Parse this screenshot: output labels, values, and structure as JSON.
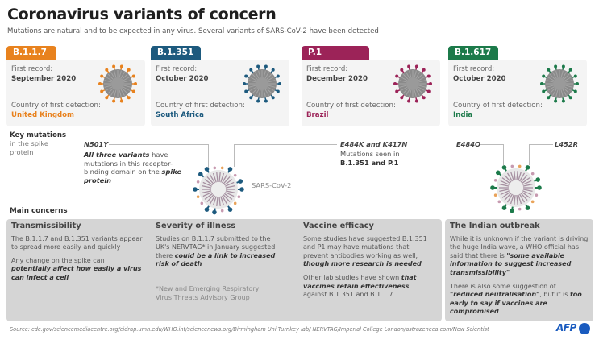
{
  "header": {
    "title": "Coronavirus variants of concern",
    "subtitle": "Mutations are natural and to be expected in any virus. Several variants of SARS-CoV-2 have been detected"
  },
  "variants": [
    {
      "name": "B.1.1.7",
      "first_record_label": "First record:",
      "first_record": "September 2020",
      "country_label": "Country of first detection:",
      "country": "United Kingdom",
      "color": "#e8821e"
    },
    {
      "name": "B.1.351",
      "first_record_label": "First record:",
      "first_record": "October 2020",
      "country_label": "Country of first detection:",
      "country": "South Africa",
      "color": "#1d5a7e"
    },
    {
      "name": "P.1",
      "first_record_label": "First record:",
      "first_record": "December 2020",
      "country_label": "Country of first detection:",
      "country": "Brazil",
      "color": "#9c2358"
    },
    {
      "name": "B.1.617",
      "first_record_label": "First record:",
      "first_record": "October 2020",
      "country_label": "Country of first detection:",
      "country": "India",
      "color": "#1c7a4a"
    }
  ],
  "key_mutations": {
    "title": "Key mutations",
    "subtitle": "in the spike protein",
    "n501y_label": "N501Y",
    "n501y_bold": "All three variants",
    "n501y_text1": " have mutations in this receptor-binding domain on the ",
    "n501y_italic": "spike protein",
    "e484k_label": "E484K and K417N",
    "e484k_text": "Mutations seen in",
    "e484k_bold": "B.1.351 and P.1",
    "virus_label": "SARS-CoV-2",
    "e484q_label": "E484Q",
    "l452r_label": "L452R"
  },
  "main_concerns": {
    "title": "Main concerns",
    "transmissibility": {
      "heading": "Transmissibility",
      "p1": "The B.1.1.7 and B.1.351 variants appear to spread more easily and quickly",
      "p2_plain": "Any change on the spike can ",
      "p2_bold": "potentially affect how easily a virus can infect a cell"
    },
    "severity": {
      "heading": "Severity of illness",
      "p1_plain": "Studies on B.1.1.7 submitted to the UK's NERVTAG* in January suggested there ",
      "p1_bold": "could be a link to increased risk of death",
      "footnote": "*New and Emerging Respiratory Virus Threats Advisory Group"
    },
    "vaccine": {
      "heading": "Vaccine efficacy",
      "p1_plain": "Some studies have suggested B.1.351 and P1 may have mutations that prevent antibodies working as well, ",
      "p1_bold": "though more research is needed",
      "p2_plain": "Other lab studies have shown ",
      "p2_bold": "that vaccines retain effectiveness",
      "p2_end": " against B.1.351 and B.1.1.7"
    },
    "indian": {
      "heading": "The Indian outbreak",
      "p1_plain": "While it is unknown if the variant is driving the huge India wave, a WHO official has said that there is ",
      "p1_bold": "\"some available information to suggest increased transmissibility\"",
      "p2_plain": "There is also some suggestion of ",
      "p2_bold": "\"reduced neutralisation\"",
      "p2_mid": ", but it is ",
      "p2_bold2": "too early to say if vaccines are compromised"
    }
  },
  "footer": {
    "source": "Source: cdc.gov/sciencemediacentre.org/cidrap.umn.edu/WHO.int/sciencenews.org/Birmingham Uni Turnkey lab/ NERVTAG/Imperial College London/astrazeneca.com/New Scientist",
    "logo": "AFP"
  }
}
